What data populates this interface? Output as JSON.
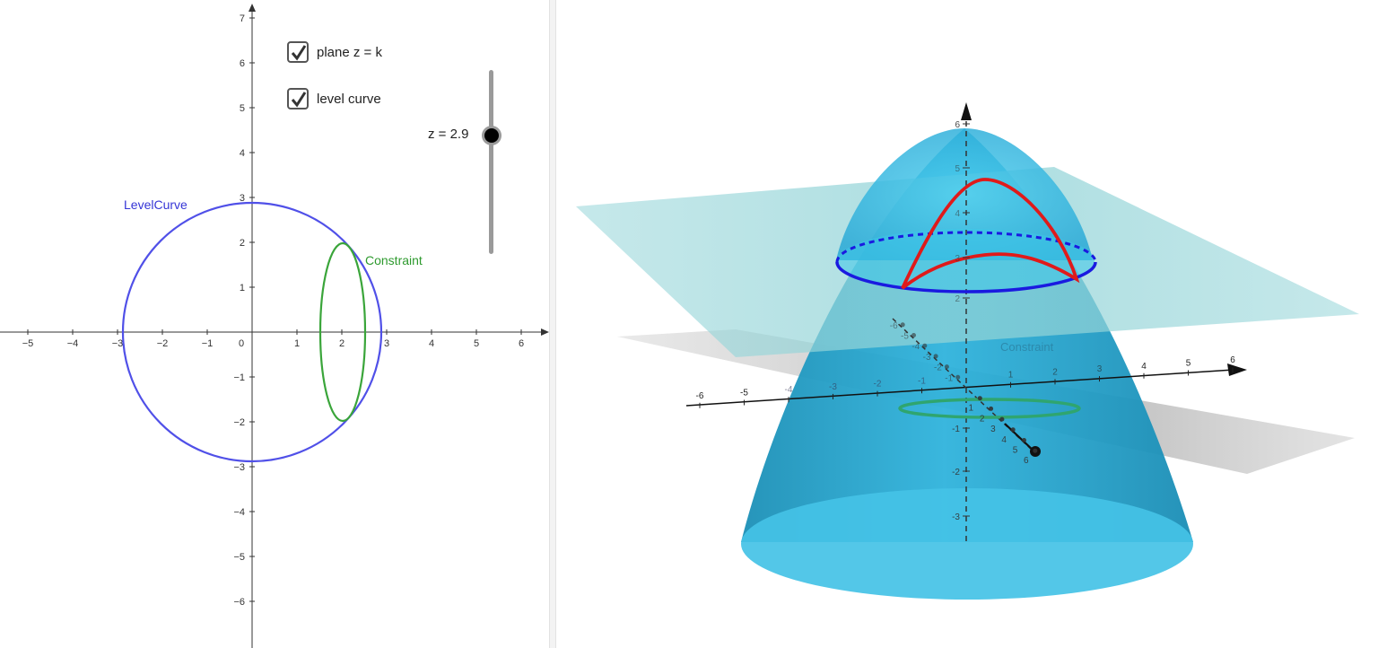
{
  "graphics2d": {
    "x_ticks": [
      "−5",
      "−4",
      "−3",
      "−2",
      "−1",
      "0",
      "1",
      "2",
      "3",
      "4",
      "5",
      "6"
    ],
    "y_ticks_pos": [
      "1",
      "2",
      "3",
      "4",
      "5",
      "6",
      "7"
    ],
    "y_ticks_neg": [
      "−1",
      "−2",
      "−3",
      "−4",
      "−5",
      "−6"
    ],
    "level_curve_label": "LevelCurve",
    "constraint_label": "Constraint",
    "level_color": "#4f4fe6",
    "constraint_color": "#3aa53a",
    "checkboxes": [
      {
        "label": "plane z = k",
        "checked": true
      },
      {
        "label": "level curve",
        "checked": true
      }
    ],
    "slider": {
      "label": "z = 2.9",
      "value": 2.9
    }
  },
  "graphics3d": {
    "x_ticks": [
      "-6",
      "-5",
      "-4",
      "-3",
      "-2",
      "-1",
      "1",
      "2",
      "3",
      "4",
      "5",
      "6"
    ],
    "z_ticks": [
      "6",
      "5",
      "4",
      "3",
      "2",
      "-1",
      "-2",
      "-3"
    ],
    "y_ticks": [
      "-6",
      "-5",
      "-4",
      "-3",
      "-2",
      "-1",
      "1",
      "2",
      "3",
      "4",
      "5",
      "6"
    ],
    "constraint_label": "Constraint",
    "surface_color": "#1ea3cc",
    "level_color": "#1a1ae0",
    "intersection_color": "#e01a1a",
    "constraint_color": "#2ea56a"
  }
}
